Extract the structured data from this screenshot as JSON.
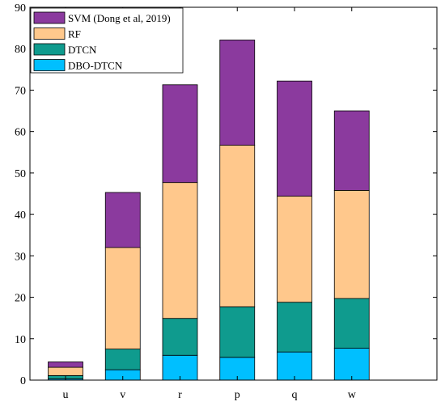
{
  "chart_data": {
    "type": "bar",
    "stacked": true,
    "title": "",
    "xlabel": "",
    "ylabel": "",
    "categories": [
      "u",
      "v",
      "r",
      "p",
      "q",
      "w"
    ],
    "ylim": [
      0,
      90
    ],
    "yticks": [
      0,
      10,
      20,
      30,
      40,
      50,
      60,
      70,
      80,
      90
    ],
    "grid": false,
    "legend_position": "top-left",
    "series": [
      {
        "name": "DBO-DTCN",
        "color": "#00BFFF",
        "values": [
          0.3,
          2.5,
          6.0,
          5.5,
          6.8,
          7.7
        ]
      },
      {
        "name": "DTCN",
        "color": "#0F9B8E",
        "values": [
          0.8,
          5.0,
          8.9,
          12.2,
          12.0,
          12.0
        ]
      },
      {
        "name": "RF",
        "color": "#FFC88C",
        "values": [
          2.0,
          24.5,
          32.8,
          39.0,
          25.6,
          26.1
        ]
      },
      {
        "name": "SVM (Dong et al, 2019)",
        "color": "#8B3A9E",
        "values": [
          1.3,
          13.3,
          23.6,
          25.4,
          27.8,
          19.2
        ]
      }
    ],
    "legend_order": [
      "SVM (Dong et al, 2019)",
      "RF",
      "DTCN",
      "DBO-DTCN"
    ]
  }
}
